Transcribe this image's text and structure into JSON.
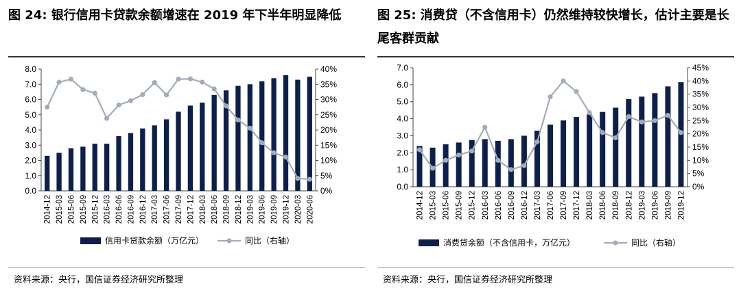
{
  "charts": [
    {
      "title": "图 24: 银行信用卡贷款余额增速在 2019 年下半年明显降低",
      "source": "资料来源：央行，国信证券经济研究所整理",
      "chart_data": {
        "type": "bar",
        "categories": [
          "2014-12",
          "2015-03",
          "2015-06",
          "2015-09",
          "2015-12",
          "2016-03",
          "2016-06",
          "2016-09",
          "2016-12",
          "2017-03",
          "2017-06",
          "2017-09",
          "2017-12",
          "2018-03",
          "2018-06",
          "2018-09",
          "2018-12",
          "2019-03",
          "2019-06",
          "2019-09",
          "2019-12",
          "2020-03",
          "2020-06"
        ],
        "series": [
          {
            "name": "信用卡贷款余额（万亿元）",
            "type": "bar",
            "axis": "left",
            "values": [
              2.3,
              2.5,
              2.8,
              2.9,
              3.1,
              3.1,
              3.6,
              3.8,
              4.1,
              4.3,
              4.7,
              5.2,
              5.6,
              5.8,
              6.3,
              6.6,
              6.9,
              7.0,
              7.2,
              7.4,
              7.6,
              7.3,
              7.5
            ]
          },
          {
            "name": "同比（右轴）",
            "type": "line",
            "axis": "right",
            "values": [
              27.5,
              35.7,
              36.7,
              33.3,
              32.1,
              23.8,
              28.2,
              29.6,
              31.6,
              35.6,
              31.5,
              36.7,
              36.8,
              35.7,
              33.5,
              27.9,
              23.3,
              20.6,
              15.8,
              12.5,
              11.1,
              4.1,
              3.8
            ]
          }
        ],
        "yleft": {
          "min": 0,
          "max": 8,
          "ticks": [
            "0.0",
            "1.0",
            "2.0",
            "3.0",
            "4.0",
            "5.0",
            "6.0",
            "7.0",
            "8.0"
          ]
        },
        "yright": {
          "min": 0,
          "max": 40,
          "ticks": [
            "0%",
            "5%",
            "10%",
            "15%",
            "20%",
            "25%",
            "30%",
            "35%",
            "40%"
          ]
        },
        "legend_position": "bottom",
        "grid": false,
        "colors": {
          "bar": "#0d1f4c",
          "line": "#a3acb8"
        }
      }
    },
    {
      "title": "图 25: 消费贷（不含信用卡）仍然维持较快增长，估计主要是长尾客群贡献",
      "source": "资料来源：央行，国信证券经济研究所整理",
      "chart_data": {
        "type": "bar",
        "categories": [
          "2014-12",
          "2015-03",
          "2015-06",
          "2015-09",
          "2015-12",
          "2016-03",
          "2016-06",
          "2016-09",
          "2016-12",
          "2017-03",
          "2017-06",
          "2017-09",
          "2017-12",
          "2018-03",
          "2018-06",
          "2018-09",
          "2018-12",
          "2019-03",
          "2019-06",
          "2019-09",
          "2019-12"
        ],
        "series": [
          {
            "name": "消费贷余额（不含信用卡，万亿元）",
            "type": "bar",
            "axis": "left",
            "values": [
              2.4,
              2.3,
              2.5,
              2.6,
              2.75,
              2.8,
              2.7,
              2.8,
              3.0,
              3.3,
              3.65,
              3.9,
              4.1,
              4.25,
              4.4,
              4.65,
              5.15,
              5.3,
              5.5,
              5.9,
              6.15
            ]
          },
          {
            "name": "同比（右轴）",
            "type": "line",
            "axis": "right",
            "values": [
              14,
              7,
              10,
              12,
              13.5,
              22.5,
              10,
              6.5,
              8,
              17,
              34,
              40,
              36,
              28,
              20.5,
              18.5,
              26.5,
              24.5,
              25,
              27,
              20.5
            ]
          }
        ],
        "yleft": {
          "min": 0,
          "max": 7,
          "ticks": [
            "0.0",
            "1.0",
            "2.0",
            "3.0",
            "4.0",
            "5.0",
            "6.0",
            "7.0"
          ]
        },
        "yright": {
          "min": 0,
          "max": 45,
          "ticks": [
            "0%",
            "5%",
            "10%",
            "15%",
            "20%",
            "25%",
            "30%",
            "35%",
            "40%",
            "45%"
          ]
        },
        "legend_position": "bottom",
        "grid": false,
        "colors": {
          "bar": "#0d1f4c",
          "line": "#a3acb8"
        }
      }
    }
  ]
}
